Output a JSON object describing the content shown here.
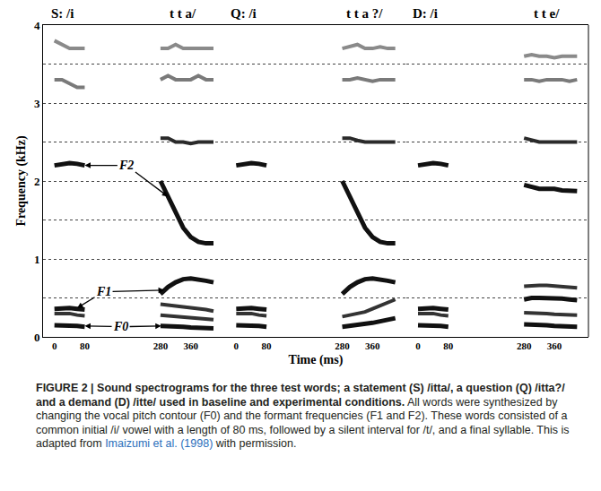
{
  "chart_data": [
    {
      "type": "line",
      "labels": [
        {
          "text": "S: /i",
          "x": 20
        },
        {
          "text": "t t a/",
          "x": 340
        }
      ],
      "ylabel": "Frequency (kHz)",
      "x": [
        0,
        20,
        40,
        60,
        80,
        180,
        280,
        300,
        320,
        340,
        360,
        380,
        400,
        420
      ],
      "xlim": [
        -30,
        450
      ],
      "xticks": [
        0,
        80,
        280,
        360
      ],
      "ylim": [
        0,
        4
      ],
      "yticks": [
        0,
        1,
        2,
        3,
        4
      ],
      "grid": true,
      "series": [
        {
          "color": "#8a8a8a",
          "values": [
            3.8,
            3.75,
            3.7,
            3.7,
            3.7,
            null,
            3.7,
            3.7,
            3.75,
            3.7,
            3.7,
            3.7,
            3.7,
            3.7
          ]
        },
        {
          "color": "#7a7a7a",
          "values": [
            3.3,
            3.3,
            3.25,
            3.2,
            3.2,
            null,
            3.3,
            3.35,
            3.3,
            3.3,
            3.3,
            3.35,
            3.3,
            3.3
          ]
        },
        {
          "color": "#2a2a2a",
          "values": [
            null,
            null,
            null,
            null,
            null,
            null,
            2.55,
            2.55,
            2.5,
            2.5,
            2.48,
            2.5,
            2.5,
            2.5
          ]
        },
        {
          "name": "F2",
          "color": "#111111",
          "values": [
            2.2,
            2.22,
            2.23,
            2.22,
            2.2,
            null,
            2.0,
            1.8,
            1.58,
            1.4,
            1.28,
            1.22,
            1.2,
            1.2
          ]
        },
        {
          "name": "F1",
          "color": "#111111",
          "values": [
            0.36,
            0.37,
            0.37,
            0.36,
            0.35,
            null,
            0.55,
            0.64,
            0.7,
            0.74,
            0.75,
            0.74,
            0.72,
            0.7
          ]
        },
        {
          "color": "#333333",
          "values": [
            null,
            null,
            null,
            null,
            null,
            null,
            0.42,
            0.41,
            0.4,
            0.39,
            0.38,
            0.37,
            0.35,
            0.33
          ]
        },
        {
          "color": "#333333",
          "values": [
            0.3,
            0.3,
            0.3,
            0.28,
            0.27,
            null,
            0.28,
            0.27,
            0.27,
            0.26,
            0.25,
            0.24,
            0.23,
            0.22
          ]
        },
        {
          "name": "F0",
          "color": "#111111",
          "values": [
            0.15,
            0.15,
            0.15,
            0.14,
            0.13,
            null,
            0.14,
            0.14,
            0.13,
            0.13,
            0.12,
            0.12,
            0.11,
            0.11
          ]
        }
      ],
      "annotations": [
        {
          "text": "F2",
          "x": 190,
          "y": 2.2,
          "points": [
            [
              80,
              2.2
            ],
            [
              300,
              1.8
            ]
          ]
        },
        {
          "text": "F1",
          "x": 130,
          "y": 0.58,
          "points": [
            [
              60,
              0.37
            ],
            [
              290,
              0.6
            ]
          ]
        },
        {
          "text": "F0",
          "x": 175,
          "y": 0.13,
          "points": [
            [
              80,
              0.14
            ],
            [
              282,
              0.14
            ]
          ]
        }
      ]
    },
    {
      "type": "line",
      "labels": [
        {
          "text": "Q: /i",
          "x": 20
        },
        {
          "text": "t t a ?/",
          "x": 340
        }
      ],
      "xlabel": "Time (ms)",
      "x": [
        0,
        20,
        40,
        60,
        80,
        180,
        280,
        300,
        320,
        340,
        360,
        380,
        400,
        420
      ],
      "xlim": [
        -30,
        450
      ],
      "xticks": [
        0,
        80,
        280,
        360
      ],
      "series": [
        {
          "color": "#8a8a8a",
          "values": [
            null,
            null,
            null,
            null,
            null,
            null,
            3.7,
            3.72,
            3.75,
            3.7,
            3.7,
            3.72,
            3.7,
            3.7
          ]
        },
        {
          "color": "#7a7a7a",
          "values": [
            null,
            null,
            null,
            null,
            null,
            null,
            3.3,
            3.3,
            3.32,
            3.3,
            3.28,
            3.3,
            3.3,
            3.3
          ]
        },
        {
          "color": "#2a2a2a",
          "values": [
            null,
            null,
            null,
            null,
            null,
            null,
            2.55,
            2.55,
            2.52,
            2.5,
            2.5,
            2.5,
            2.5,
            2.5
          ]
        },
        {
          "name": "F2",
          "color": "#111111",
          "values": [
            2.2,
            2.22,
            2.23,
            2.22,
            2.2,
            null,
            2.0,
            1.8,
            1.58,
            1.4,
            1.28,
            1.22,
            1.2,
            1.2
          ]
        },
        {
          "name": "F1",
          "color": "#111111",
          "values": [
            0.36,
            0.37,
            0.37,
            0.36,
            0.35,
            null,
            0.55,
            0.64,
            0.7,
            0.74,
            0.75,
            0.74,
            0.72,
            0.7
          ]
        },
        {
          "color": "#333333",
          "values": [
            0.3,
            0.3,
            0.3,
            0.28,
            0.27,
            null,
            0.26,
            0.28,
            0.3,
            0.32,
            0.36,
            0.4,
            0.44,
            0.48
          ]
        },
        {
          "name": "F0",
          "color": "#111111",
          "values": [
            0.15,
            0.15,
            0.15,
            0.14,
            0.13,
            null,
            0.13,
            0.14,
            0.15,
            0.16,
            0.18,
            0.2,
            0.22,
            0.24
          ]
        }
      ]
    },
    {
      "type": "line",
      "labels": [
        {
          "text": "D: /i",
          "x": 20
        },
        {
          "text": "t t e/",
          "x": 340
        }
      ],
      "x": [
        0,
        20,
        40,
        60,
        80,
        180,
        280,
        300,
        320,
        340,
        360,
        380,
        400,
        420
      ],
      "xlim": [
        -30,
        450
      ],
      "xticks": [
        0,
        80,
        280,
        360
      ],
      "series": [
        {
          "color": "#8a8a8a",
          "values": [
            null,
            null,
            null,
            null,
            null,
            null,
            3.6,
            3.62,
            3.6,
            3.6,
            3.58,
            3.6,
            3.6,
            3.6
          ]
        },
        {
          "color": "#7a7a7a",
          "values": [
            null,
            null,
            null,
            null,
            null,
            null,
            3.3,
            3.3,
            3.28,
            3.3,
            3.3,
            3.3,
            3.28,
            3.3
          ]
        },
        {
          "color": "#2a2a2a",
          "values": [
            null,
            null,
            null,
            null,
            null,
            null,
            2.55,
            2.52,
            2.5,
            2.5,
            2.5,
            2.5,
            2.5,
            2.5
          ]
        },
        {
          "name": "F2",
          "color": "#111111",
          "values": [
            2.2,
            2.22,
            2.23,
            2.22,
            2.2,
            null,
            1.95,
            1.92,
            1.9,
            1.9,
            1.9,
            1.88,
            1.88,
            1.87
          ]
        },
        {
          "color": "#333333",
          "values": [
            null,
            null,
            null,
            null,
            null,
            null,
            0.65,
            0.66,
            0.66,
            0.66,
            0.65,
            0.65,
            0.64,
            0.63
          ]
        },
        {
          "name": "F1",
          "color": "#111111",
          "values": [
            0.36,
            0.37,
            0.37,
            0.36,
            0.35,
            null,
            0.48,
            0.5,
            0.5,
            0.5,
            0.5,
            0.49,
            0.48,
            0.47
          ]
        },
        {
          "color": "#333333",
          "values": [
            0.3,
            0.3,
            0.3,
            0.28,
            0.27,
            null,
            0.31,
            0.31,
            0.3,
            0.3,
            0.29,
            0.29,
            0.28,
            0.28
          ]
        },
        {
          "name": "F0",
          "color": "#111111",
          "values": [
            0.15,
            0.15,
            0.15,
            0.14,
            0.13,
            null,
            0.16,
            0.16,
            0.15,
            0.15,
            0.14,
            0.14,
            0.13,
            0.13
          ]
        }
      ]
    }
  ],
  "caption": {
    "title": "FIGURE 2 | Sound spectrograms for the three test words; a statement (S) /itta/, a question (Q) /itta?/ and a demand (D) /itte/ used in baseline and experimental conditions.",
    "text": "All words were synthesized by changing the vocal pitch contour (F0) and the formant frequencies (F1 and F2). These words consisted of a common initial /i/ vowel with a length of 80 ms, followed by a silent interval for /t/, and a final syllable. This is adapted from ",
    "link": "Imaizumi et al. (1998)",
    "end": " with permission."
  }
}
